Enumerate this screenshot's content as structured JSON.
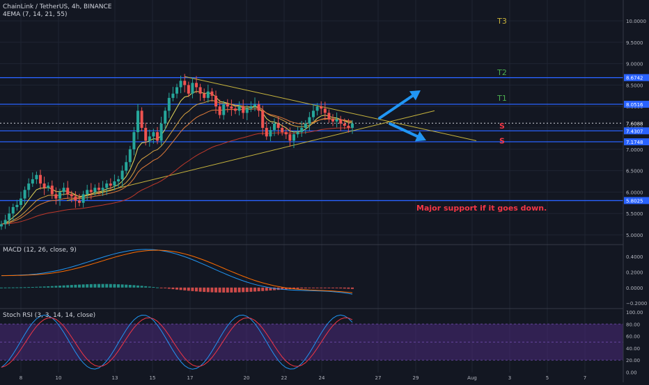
{
  "header": {
    "symbol": "ChainLink / TetherUS, 4h, BINANCE",
    "indicator": "4EMA (7, 14, 21, 55)"
  },
  "colors": {
    "background": "#131722",
    "grid": "#1f2433",
    "up": "#26a69a",
    "down": "#ef5350",
    "level_line": "#2962ff",
    "trendline": "#c8b53d",
    "arrow": "#2196f3",
    "target_label": "#4caf50",
    "t3_label": "#c9b33a",
    "support_text": "#f23645",
    "macd_line": "#2196f3",
    "signal_line": "#ff6d00",
    "stoch_k": "#2196f3",
    "stoch_d": "#f23645",
    "rsi_band": "#4a2a7a"
  },
  "chart_data": [
    {
      "type": "candlestick",
      "ylim": [
        4.75,
        10.25
      ],
      "yticks": [
        "10.0000",
        "9.5000",
        "9.0000",
        "8.5000",
        "8.0000",
        "7.5000",
        "7.0000",
        "6.5000",
        "6.0000",
        "5.5000",
        "5.0000"
      ],
      "xticks": [
        "8",
        "10",
        "13",
        "15",
        "17",
        "20",
        "22",
        "24",
        "27",
        "29",
        "Aug",
        "3",
        "5",
        "7"
      ],
      "xtick_days": [
        8,
        10,
        13,
        15,
        17,
        20,
        22,
        24,
        27,
        29,
        32,
        34,
        36,
        38
      ],
      "price_tags": [
        {
          "text": "8.6742",
          "value": 8.6742
        },
        {
          "text": "8.0516",
          "value": 8.0516
        },
        {
          "text": "7.6088",
          "value": 7.6088
        },
        {
          "text": "7.4307",
          "value": 7.4307
        },
        {
          "text": "7.1748",
          "value": 7.1748
        },
        {
          "text": "5.8025",
          "value": 5.8025
        }
      ],
      "horizontal_levels": [
        8.6742,
        8.0516,
        7.4307,
        7.1748,
        5.8025
      ],
      "current_price": 7.6088,
      "ohlc_closes": [
        5.25,
        5.35,
        5.5,
        5.65,
        5.7,
        5.85,
        6.05,
        6.2,
        6.3,
        6.4,
        6.2,
        6.1,
        6.15,
        5.95,
        5.85,
        6.0,
        6.1,
        5.95,
        5.9,
        5.8,
        5.75,
        5.95,
        6.05,
        6.0,
        6.1,
        6.05,
        6.1,
        6.2,
        6.15,
        6.25,
        6.3,
        6.5,
        6.7,
        7.0,
        7.4,
        7.9,
        7.5,
        7.2,
        7.3,
        7.4,
        7.2,
        7.6,
        7.9,
        8.2,
        8.3,
        8.45,
        8.6,
        8.5,
        8.3,
        8.55,
        8.45,
        8.3,
        8.2,
        8.35,
        8.25,
        8.0,
        7.8,
        8.05,
        8.0,
        7.95,
        7.9,
        8.0,
        7.85,
        7.95,
        8.0,
        8.05,
        7.9,
        7.5,
        7.3,
        7.45,
        7.6,
        7.5,
        7.4,
        7.35,
        7.2,
        7.35,
        7.4,
        7.5,
        7.6,
        7.75,
        7.9,
        8.0,
        7.95,
        7.85,
        7.7,
        7.65,
        7.7,
        7.6,
        7.55,
        7.5,
        7.6
      ],
      "annotations": {
        "targets": [
          {
            "text": "T3",
            "price": 10.0
          },
          {
            "text": "T2",
            "price": 8.8
          },
          {
            "text": "T1",
            "price": 8.2
          }
        ],
        "supports": [
          {
            "text": "S",
            "price": 7.55
          },
          {
            "text": "S",
            "price": 7.2
          }
        ],
        "note": "Major support if it goes down."
      }
    },
    {
      "type": "line",
      "title": "MACD (12, 26, close, 9)",
      "ylim": [
        -0.28,
        0.58
      ],
      "yticks": [
        "0.4000",
        "0.2000",
        "0.0000",
        "−0.2000"
      ],
      "ytick_values": [
        0.4,
        0.2,
        0.0,
        -0.2
      ]
    },
    {
      "type": "line",
      "title": "Stoch RSI (3, 3, 14, 14, close)",
      "ylim": [
        0,
        100
      ],
      "yticks": [
        "100.00",
        "80.00",
        "60.00",
        "40.00",
        "20.00",
        "0.00"
      ],
      "ytick_values": [
        100,
        80,
        60,
        40,
        20,
        0
      ],
      "band": [
        20,
        80
      ]
    }
  ]
}
